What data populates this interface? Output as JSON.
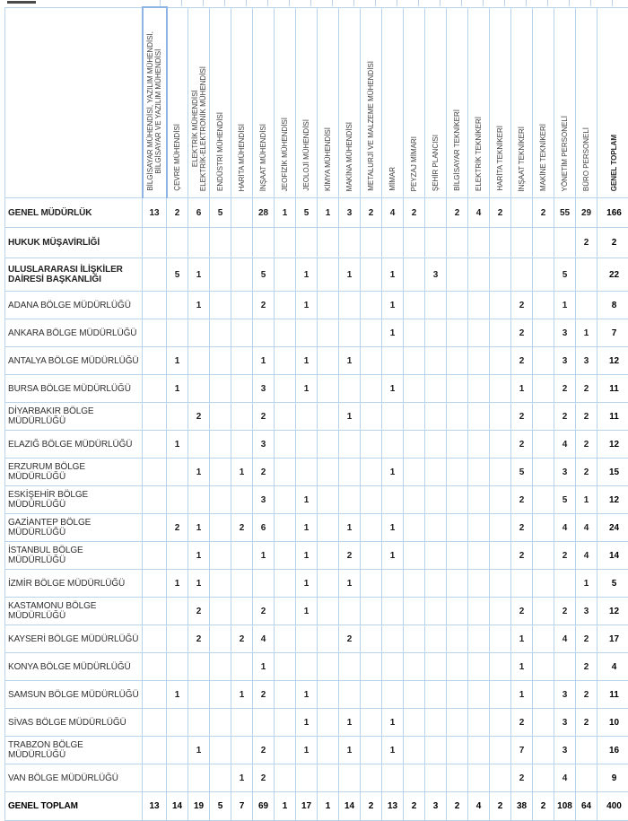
{
  "table": {
    "corner_label": "",
    "columns": [
      {
        "label": "BİLGİSAYAR MÜHENDİSİ, YAZILIM MÜHENDİSİ,\nBİLGİSAYAR VE YAZILIM MÜHENDİSİ",
        "highlighted": true
      },
      {
        "label": "ÇEVRE MÜHENDİSİ"
      },
      {
        "label": "ELEKTRİK MÜHENDİSİ\nELEKTRİK-ELEKTRONİK MÜHENDİSİ"
      },
      {
        "label": "ENDÜSTRİ MÜHENDİSİ"
      },
      {
        "label": "HARİTA MÜHENDİSİ"
      },
      {
        "label": "İNŞAAT MÜHENDİSİ"
      },
      {
        "label": "JEOFİZİK MÜHENDİSİ"
      },
      {
        "label": "JEOLOJİ MÜHENDİSİ"
      },
      {
        "label": "KİMYA MÜHENDİSİ"
      },
      {
        "label": "MAKİNA MÜHENDİSİ"
      },
      {
        "label": "METALURJİ VE MALZEME MÜHENDİSİ"
      },
      {
        "label": "MİMAR"
      },
      {
        "label": "PEYZAJ MİMARI"
      },
      {
        "label": "ŞEHİR PLANCISI"
      },
      {
        "label": "BİLGİSAYAR TEKNİKERİ"
      },
      {
        "label": "ELEKTRİK TEKNİKERİ"
      },
      {
        "label": "HARİTA TEKNİKERİ"
      },
      {
        "label": "İNŞAAT TEKNİKERİ"
      },
      {
        "label": "MAKİNE TEKNİKERİ"
      },
      {
        "label": "YÖNETİM PERSONELİ"
      },
      {
        "label": "BÜRO PERSONELİ"
      },
      {
        "label": "GENEL TOPLAM",
        "total": true
      }
    ],
    "rows": [
      {
        "label": "GENEL MÜDÜRLÜK",
        "bold": true,
        "values": [
          13,
          2,
          6,
          5,
          "",
          28,
          1,
          5,
          1,
          3,
          2,
          4,
          2,
          "",
          2,
          4,
          2,
          "",
          2,
          55,
          29,
          166
        ]
      },
      {
        "label": "HUKUK MÜŞAVİRLİĞİ",
        "bold": true,
        "values": [
          "",
          "",
          "",
          "",
          "",
          "",
          "",
          "",
          "",
          "",
          "",
          "",
          "",
          "",
          "",
          "",
          "",
          "",
          "",
          "",
          2,
          2
        ]
      },
      {
        "label": "ULUSLARARASI İLİŞKİLER DAİRESİ BAŞKANLIĞI",
        "bold": true,
        "values": [
          "",
          5,
          1,
          "",
          "",
          5,
          "",
          1,
          "",
          1,
          "",
          1,
          "",
          3,
          "",
          "",
          "",
          "",
          "",
          5,
          "",
          22
        ]
      },
      {
        "label": "ADANA BÖLGE MÜDÜRLÜĞÜ",
        "values": [
          "",
          "",
          1,
          "",
          "",
          2,
          "",
          1,
          "",
          "",
          "",
          1,
          "",
          "",
          "",
          "",
          "",
          2,
          "",
          1,
          "",
          8
        ]
      },
      {
        "label": "ANKARA BÖLGE MÜDÜRLÜĞÜ",
        "values": [
          "",
          "",
          "",
          "",
          "",
          "",
          "",
          "",
          "",
          "",
          "",
          1,
          "",
          "",
          "",
          "",
          "",
          2,
          "",
          3,
          1,
          7
        ]
      },
      {
        "label": "ANTALYA BÖLGE MÜDÜRLÜĞÜ",
        "values": [
          "",
          1,
          "",
          "",
          "",
          1,
          "",
          1,
          "",
          1,
          "",
          "",
          "",
          "",
          "",
          "",
          "",
          2,
          "",
          3,
          3,
          12
        ]
      },
      {
        "label": "BURSA BÖLGE MÜDÜRLÜĞÜ",
        "values": [
          "",
          1,
          "",
          "",
          "",
          3,
          "",
          1,
          "",
          "",
          "",
          1,
          "",
          "",
          "",
          "",
          "",
          1,
          "",
          2,
          2,
          11
        ]
      },
      {
        "label": "DİYARBAKIR BÖLGE MÜDÜRLÜĞÜ",
        "values": [
          "",
          "",
          2,
          "",
          "",
          2,
          "",
          "",
          "",
          1,
          "",
          "",
          "",
          "",
          "",
          "",
          "",
          2,
          "",
          2,
          2,
          11
        ]
      },
      {
        "label": "ELAZIĞ BÖLGE MÜDÜRLÜĞÜ",
        "values": [
          "",
          1,
          "",
          "",
          "",
          3,
          "",
          "",
          "",
          "",
          "",
          "",
          "",
          "",
          "",
          "",
          "",
          2,
          "",
          4,
          2,
          12
        ]
      },
      {
        "label": "ERZURUM BÖLGE MÜDÜRLÜĞÜ",
        "values": [
          "",
          "",
          1,
          "",
          1,
          2,
          "",
          "",
          "",
          "",
          "",
          1,
          "",
          "",
          "",
          "",
          "",
          5,
          "",
          3,
          2,
          15
        ]
      },
      {
        "label": "ESKİŞEHİR BÖLGE MÜDÜRLÜĞÜ",
        "values": [
          "",
          "",
          "",
          "",
          "",
          3,
          "",
          1,
          "",
          "",
          "",
          "",
          "",
          "",
          "",
          "",
          "",
          2,
          "",
          5,
          1,
          12
        ]
      },
      {
        "label": "GAZİANTEP BÖLGE MÜDÜRLÜĞÜ",
        "values": [
          "",
          2,
          1,
          "",
          2,
          6,
          "",
          1,
          "",
          1,
          "",
          1,
          "",
          "",
          "",
          "",
          "",
          2,
          "",
          4,
          4,
          24
        ]
      },
      {
        "label": "İSTANBUL BÖLGE MÜDÜRLÜĞÜ",
        "values": [
          "",
          "",
          1,
          "",
          "",
          1,
          "",
          1,
          "",
          2,
          "",
          1,
          "",
          "",
          "",
          "",
          "",
          2,
          "",
          2,
          4,
          14
        ]
      },
      {
        "label": "İZMİR  BÖLGE MÜDÜRLÜĞÜ",
        "values": [
          "",
          1,
          1,
          "",
          "",
          "",
          "",
          1,
          "",
          1,
          "",
          "",
          "",
          "",
          "",
          "",
          "",
          "",
          "",
          "",
          1,
          5
        ]
      },
      {
        "label": "KASTAMONU BÖLGE MÜDÜRLÜĞÜ",
        "values": [
          "",
          "",
          2,
          "",
          "",
          2,
          "",
          1,
          "",
          "",
          "",
          "",
          "",
          "",
          "",
          "",
          "",
          2,
          "",
          2,
          3,
          12
        ]
      },
      {
        "label": "KAYSERİ BÖLGE MÜDÜRLÜĞÜ",
        "values": [
          "",
          "",
          2,
          "",
          2,
          4,
          "",
          "",
          "",
          2,
          "",
          "",
          "",
          "",
          "",
          "",
          "",
          1,
          "",
          4,
          2,
          17
        ]
      },
      {
        "label": "KONYA BÖLGE MÜDÜRLÜĞÜ",
        "values": [
          "",
          "",
          "",
          "",
          "",
          1,
          "",
          "",
          "",
          "",
          "",
          "",
          "",
          "",
          "",
          "",
          "",
          1,
          "",
          "",
          2,
          4
        ]
      },
      {
        "label": "SAMSUN BÖLGE MÜDÜRLÜĞÜ",
        "values": [
          "",
          1,
          "",
          "",
          1,
          2,
          "",
          1,
          "",
          "",
          "",
          "",
          "",
          "",
          "",
          "",
          "",
          1,
          "",
          3,
          2,
          11
        ]
      },
      {
        "label": "SİVAS BÖLGE MÜDÜRLÜĞÜ",
        "values": [
          "",
          "",
          "",
          "",
          "",
          "",
          "",
          1,
          "",
          1,
          "",
          1,
          "",
          "",
          "",
          "",
          "",
          2,
          "",
          3,
          2,
          10
        ]
      },
      {
        "label": "TRABZON BÖLGE MÜDÜRLÜĞÜ",
        "values": [
          "",
          "",
          1,
          "",
          "",
          2,
          "",
          1,
          "",
          1,
          "",
          1,
          "",
          "",
          "",
          "",
          "",
          7,
          "",
          3,
          "",
          16
        ]
      },
      {
        "label": "VAN BÖLGE MÜDÜRLÜĞÜ",
        "values": [
          "",
          "",
          "",
          "",
          1,
          2,
          "",
          "",
          "",
          "",
          "",
          "",
          "",
          "",
          "",
          "",
          "",
          2,
          "",
          4,
          "",
          9
        ]
      },
      {
        "label": "GENEL TOPLAM",
        "total_row": true,
        "values": [
          13,
          14,
          19,
          5,
          7,
          69,
          1,
          17,
          1,
          14,
          2,
          13,
          2,
          3,
          2,
          4,
          2,
          38,
          2,
          108,
          64,
          400
        ]
      }
    ]
  },
  "colors": {
    "gridline": "#b9d3ea",
    "header_highlight_border": "#8eb4e3",
    "text": "#1c1c1c"
  }
}
